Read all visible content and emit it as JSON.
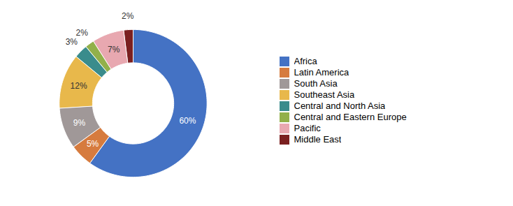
{
  "chart_data": {
    "type": "pie",
    "categories": [
      "Africa",
      "Latin America",
      "South Asia",
      "Southeast Asia",
      "Central and North Asia",
      "Central and Eastern Europe",
      "Pacific",
      "Middle East"
    ],
    "values": [
      60,
      5,
      9,
      12,
      3,
      2,
      7,
      2
    ],
    "value_labels": [
      "60%",
      "5%",
      "9%",
      "12%",
      "3%",
      "2%",
      "7%",
      "2%"
    ],
    "colors": [
      "#4472C4",
      "#D67B3E",
      "#A09898",
      "#E8B84B",
      "#3A8C8C",
      "#92B04A",
      "#E8A8B0",
      "#7B2020"
    ],
    "data_labels": true,
    "legend": "right"
  }
}
